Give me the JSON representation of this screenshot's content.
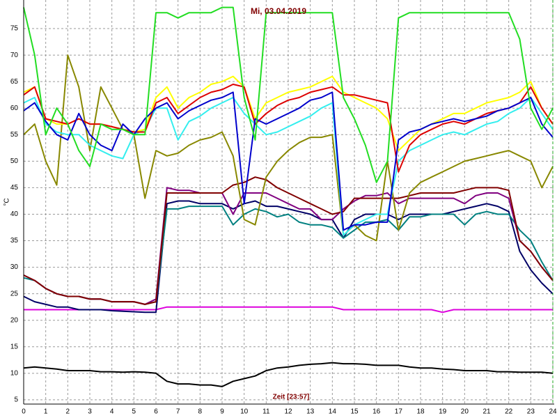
{
  "chart_data": {
    "type": "line",
    "title": "Mi, 03.04.2019",
    "x_label": "Zeit [23:57]",
    "y_label": "°C",
    "x": [
      0,
      0.5,
      1,
      1.5,
      2,
      2.5,
      3,
      3.5,
      4,
      4.5,
      5,
      5.5,
      6,
      6.5,
      7,
      7.5,
      8,
      8.5,
      9,
      9.5,
      10,
      10.5,
      11,
      11.5,
      12,
      12.5,
      13,
      13.5,
      14,
      14.5,
      15,
      15.5,
      16,
      16.5,
      17,
      17.5,
      18,
      18.5,
      19,
      19.5,
      20,
      20.5,
      21,
      21.5,
      22,
      22.5,
      23,
      23.5,
      24
    ],
    "xlim": [
      0,
      24
    ],
    "xticks": [
      0,
      1,
      2,
      3,
      4,
      5,
      6,
      7,
      8,
      9,
      10,
      11,
      12,
      13,
      14,
      15,
      16,
      17,
      18,
      19,
      20,
      21,
      22,
      23,
      24
    ],
    "ylim": [
      4.2,
      80
    ],
    "yticks": [
      5,
      10,
      15,
      20,
      25,
      30,
      35,
      40,
      45,
      50,
      55,
      60,
      65,
      70,
      75
    ],
    "grid": true,
    "series": [
      {
        "color": "#000000",
        "values": [
          11,
          11.2,
          11,
          10.8,
          10.5,
          10.5,
          10.5,
          10.3,
          10.3,
          10.2,
          10.3,
          10.2,
          10,
          8.5,
          8,
          8,
          7.8,
          7.8,
          7.5,
          8.5,
          9,
          9.5,
          10.5,
          11,
          11.2,
          11.5,
          11.7,
          11.8,
          12,
          11.8,
          11.8,
          11.7,
          11.5,
          11.5,
          11.5,
          11.2,
          11,
          11,
          10.8,
          10.7,
          10.5,
          10.5,
          10.5,
          10.3,
          10.3,
          10.2,
          10.2,
          10.2,
          10
        ]
      },
      {
        "color": "#dd00dd",
        "values": [
          22,
          22,
          22,
          22,
          22,
          22,
          22,
          22,
          22,
          22,
          22,
          22,
          22,
          22.5,
          22.5,
          22.5,
          22.5,
          22.5,
          22.5,
          22.5,
          22.5,
          22.5,
          22.5,
          22.5,
          22.5,
          22.5,
          22.5,
          22.5,
          22.5,
          22,
          22,
          22,
          22,
          22,
          22,
          22,
          22,
          22,
          21.5,
          22,
          22,
          22,
          22,
          22,
          22,
          22,
          22,
          22,
          22
        ]
      },
      {
        "color": "#000066",
        "values": [
          24.5,
          23.5,
          23,
          22.5,
          22.5,
          22,
          22,
          22,
          21.8,
          21.7,
          21.6,
          21.5,
          21.5,
          42,
          42.5,
          42.5,
          42,
          42,
          42,
          41,
          42,
          42.5,
          41.5,
          41.5,
          41,
          40.5,
          40,
          39,
          39,
          35.5,
          39,
          40,
          40,
          40,
          39,
          40,
          40,
          40,
          40,
          40.5,
          41,
          41.5,
          42,
          41.5,
          40.5,
          33,
          29.5,
          27,
          25
        ]
      },
      {
        "color": "#008080",
        "values": [
          28,
          27.5,
          26,
          25,
          24.5,
          24.5,
          24,
          24,
          23.5,
          23.5,
          23.5,
          23,
          23.5,
          41,
          41,
          41.5,
          41.5,
          41.5,
          41.5,
          38,
          40,
          41,
          40.5,
          39.5,
          40,
          38.5,
          38,
          38,
          37.5,
          35.5,
          37,
          38.5,
          38.5,
          39,
          37,
          39.5,
          39.5,
          40,
          40,
          40,
          38,
          40,
          40.5,
          40,
          40,
          37,
          35,
          31,
          27.5
        ]
      },
      {
        "color": "#800080",
        "values": [
          28.5,
          27.5,
          26,
          25,
          24.5,
          24.5,
          24,
          24,
          23.5,
          23.5,
          23.5,
          23,
          24,
          45,
          44.5,
          44.5,
          44,
          44,
          44,
          40,
          44,
          44,
          44,
          43,
          42,
          41,
          41,
          39,
          39,
          41,
          42.5,
          43.5,
          43.5,
          44,
          42,
          43,
          43,
          43,
          43,
          43,
          42,
          43.5,
          44,
          44,
          43,
          35,
          33,
          30,
          27.5
        ]
      },
      {
        "color": "#800000",
        "values": [
          28.5,
          27.5,
          26,
          25,
          24.5,
          24.5,
          24,
          24,
          23.5,
          23.5,
          23.5,
          23,
          23.5,
          44,
          44,
          44,
          44,
          44,
          44,
          45.5,
          46,
          47,
          46.5,
          45,
          44,
          43,
          42,
          41,
          40,
          40.5,
          43,
          43,
          43,
          43,
          43,
          43.5,
          44,
          44,
          44,
          44,
          44.5,
          45,
          45,
          45,
          44.5,
          35,
          33,
          30,
          27.5
        ]
      },
      {
        "color": "#888800",
        "values": [
          55,
          57,
          50,
          45.5,
          70,
          64,
          52,
          64,
          60,
          56,
          55,
          43,
          52,
          51,
          51.5,
          53,
          54,
          54.5,
          55.5,
          51,
          39,
          38,
          47,
          50,
          52,
          53.5,
          54.5,
          54.5,
          55,
          36,
          38,
          36,
          35,
          50,
          37,
          44,
          46,
          47,
          48,
          49,
          50,
          50.5,
          51,
          51.5,
          52,
          51,
          50,
          45,
          49
        ]
      },
      {
        "color": "#33eeee",
        "values": [
          61,
          62,
          57,
          55.5,
          55,
          55,
          53,
          52,
          51,
          50.5,
          55,
          56,
          60,
          60,
          54,
          57.5,
          58.5,
          60,
          61,
          62,
          59,
          57,
          55,
          55.5,
          56.5,
          57.5,
          58.5,
          60,
          61,
          36,
          38,
          39,
          40,
          40,
          50,
          52,
          53,
          54,
          55,
          55.5,
          55,
          56,
          57,
          57.5,
          59,
          60,
          62,
          59,
          56
        ]
      },
      {
        "color": "#ffff00",
        "values": [
          63,
          64,
          58,
          57,
          57,
          58,
          57,
          57,
          56.5,
          56,
          55.5,
          56,
          62,
          64,
          60,
          62,
          63,
          64.5,
          65,
          66,
          64,
          58,
          61,
          62,
          63,
          63.5,
          64,
          65,
          66,
          63,
          62,
          61,
          60,
          58,
          52,
          54,
          56,
          57,
          58,
          59,
          59,
          60,
          61,
          61.5,
          62,
          63,
          65,
          60,
          57
        ]
      },
      {
        "color": "#dd0000",
        "values": [
          62.5,
          64,
          58,
          57.5,
          57,
          58,
          57,
          57,
          56.5,
          56,
          55.5,
          55.5,
          61,
          62,
          59,
          60.5,
          62,
          63,
          63.5,
          64.5,
          64,
          57,
          59,
          60.5,
          61.5,
          62,
          63,
          63.5,
          64,
          62.5,
          62.5,
          62,
          61.5,
          61,
          48,
          53,
          55,
          56,
          57,
          57.5,
          57,
          58,
          59,
          59.5,
          60,
          61,
          64,
          60,
          57
        ]
      },
      {
        "color": "#0000cc",
        "values": [
          59.5,
          61,
          57.5,
          55,
          54,
          59,
          55,
          53,
          52,
          57,
          55,
          58,
          60,
          61,
          58,
          59.5,
          60.5,
          61.5,
          62,
          63,
          42,
          58,
          57,
          58,
          59,
          60,
          61.5,
          62,
          63,
          37,
          38,
          38,
          38.5,
          38.5,
          54,
          55.5,
          56,
          57,
          57.5,
          58,
          57.5,
          58,
          58.5,
          59.5,
          60,
          61,
          62,
          57,
          54.5
        ]
      },
      {
        "color": "#22dd22",
        "values": [
          79,
          70,
          55,
          60,
          57,
          52,
          49,
          57,
          56,
          56,
          55,
          55,
          78,
          78,
          77,
          78,
          78,
          78,
          79,
          79,
          62,
          54,
          78,
          78,
          78,
          78,
          78,
          78,
          78,
          62,
          58,
          53,
          46,
          50,
          77,
          78,
          78,
          78,
          78,
          78,
          78,
          78,
          78,
          78,
          78,
          73,
          60,
          56,
          60
        ]
      }
    ]
  }
}
